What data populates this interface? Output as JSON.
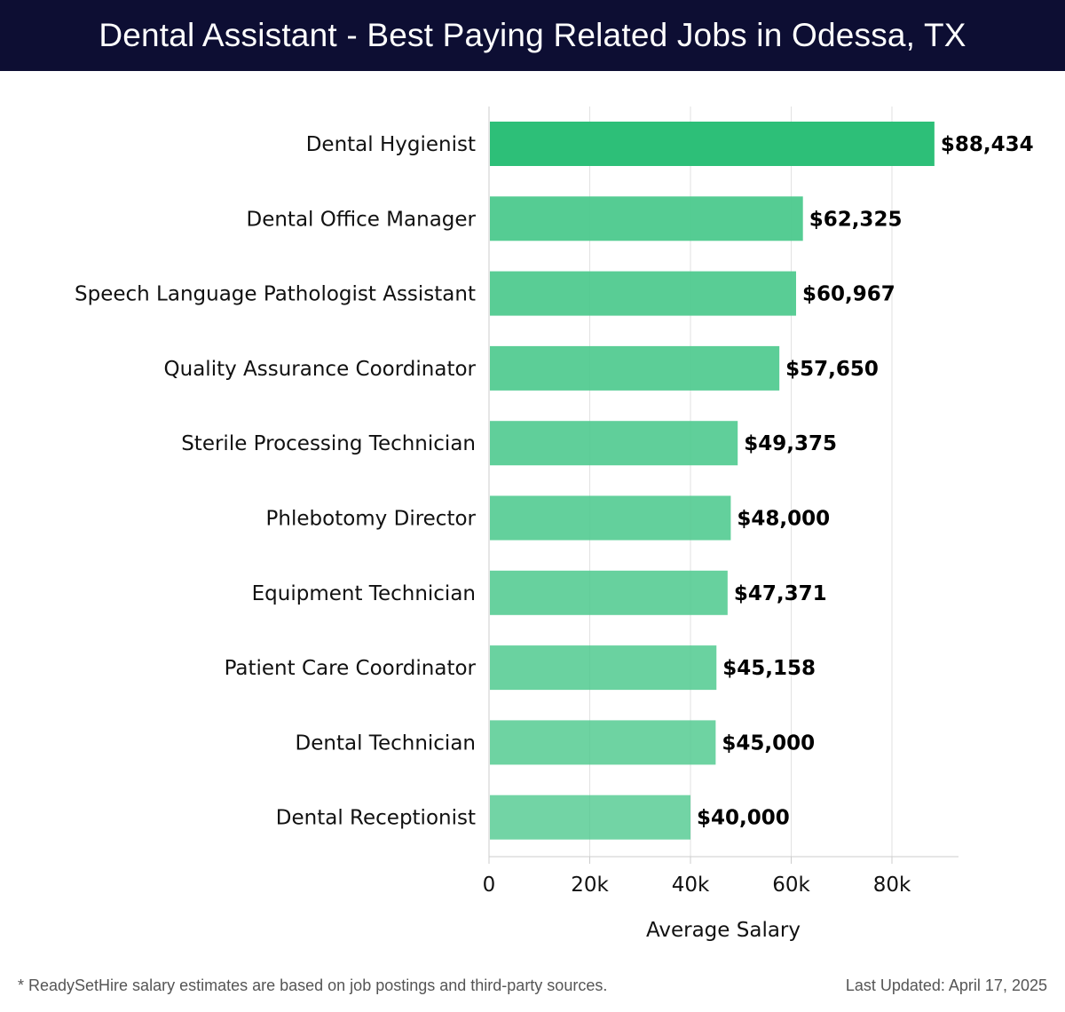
{
  "header": {
    "title": "Dental Assistant - Best Paying Related Jobs in Odessa, TX"
  },
  "chart_data": {
    "type": "bar",
    "orientation": "horizontal",
    "title": "Dental Assistant - Best Paying Related Jobs in Odessa, TX",
    "xlabel": "Average Salary",
    "ylabel": "",
    "xlim": [
      0,
      92000
    ],
    "xticks": [
      0,
      20000,
      40000,
      60000,
      80000
    ],
    "xtick_labels": [
      "0",
      "20k",
      "40k",
      "60k",
      "80k"
    ],
    "grid": "vertical",
    "categories": [
      "Dental Hygienist",
      "Dental Office Manager",
      "Speech Language Pathologist Assistant",
      "Quality Assurance Coordinator",
      "Sterile Processing Technician",
      "Phlebotomy Director",
      "Equipment Technician",
      "Patient Care Coordinator",
      "Dental Technician",
      "Dental Receptionist"
    ],
    "values": [
      88434,
      62325,
      60967,
      57650,
      49375,
      48000,
      47371,
      45158,
      45000,
      40000
    ],
    "value_labels": [
      "$88,434",
      "$62,325",
      "$60,967",
      "$57,650",
      "$49,375",
      "$48,000",
      "$47,371",
      "$45,158",
      "$45,000",
      "$40,000"
    ],
    "colors": {
      "top_bar": "#2dbf78",
      "bars": "#4cc98d",
      "grid": "#e2e2e2",
      "axis": "#cccccc"
    }
  },
  "footer": {
    "note": "* ReadySetHire salary estimates are based on job postings and third-party sources.",
    "updated": "Last Updated: April 17, 2025"
  }
}
